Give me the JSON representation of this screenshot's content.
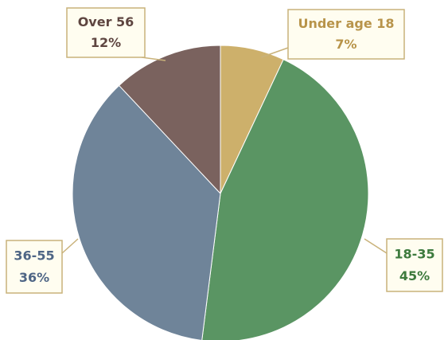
{
  "chart_data": {
    "type": "pie",
    "categories": [
      "Under age 18",
      "18-35",
      "36-55",
      "Over 56"
    ],
    "values": [
      7,
      45,
      36,
      12
    ],
    "value_labels": [
      "7%",
      "45%",
      "36%",
      "12%"
    ],
    "colors": [
      "#cdb06b",
      "#5a9563",
      "#6f8499",
      "#7a625e"
    ]
  }
}
